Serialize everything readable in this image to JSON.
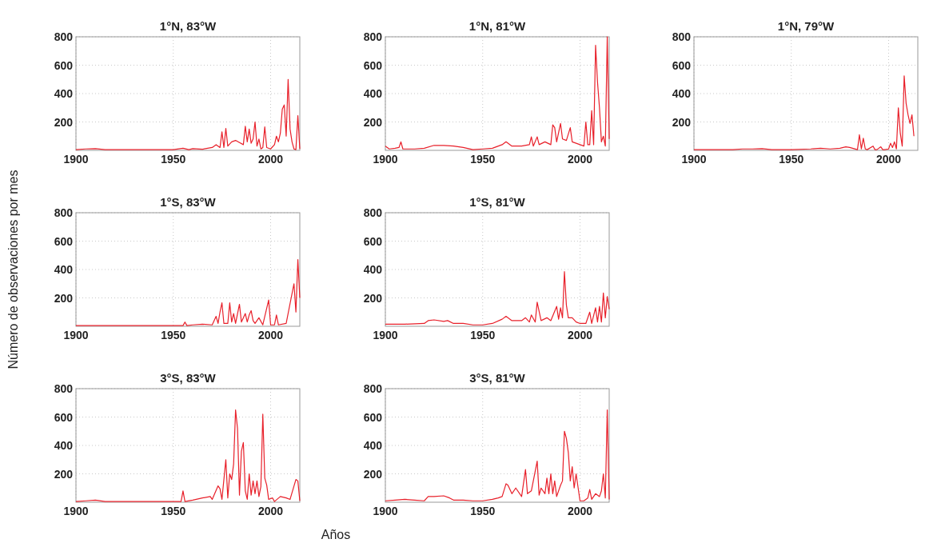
{
  "chart_data": [
    {
      "type": "line",
      "title": "1°N, 83°W",
      "xlim": [
        1900,
        2015
      ],
      "xticks": [
        1900,
        1950,
        2000
      ],
      "ylim": [
        0,
        800
      ],
      "yticks": [
        200,
        400,
        600,
        800
      ],
      "grid": true,
      "series": [
        {
          "color": "#e8202a",
          "x": [
            1900,
            1905,
            1910,
            1915,
            1920,
            1930,
            1940,
            1950,
            1955,
            1958,
            1960,
            1965,
            1970,
            1972,
            1974,
            1975,
            1976,
            1977,
            1978,
            1980,
            1982,
            1984,
            1986,
            1987,
            1988,
            1989,
            1990,
            1991,
            1992,
            1993,
            1994,
            1995,
            1996,
            1997,
            1998,
            2000,
            2002,
            2003,
            2004,
            2005,
            2006,
            2007,
            2008,
            2009,
            2010,
            2011,
            2012,
            2013,
            2014,
            2015
          ],
          "values": [
            5,
            10,
            12,
            5,
            5,
            5,
            5,
            5,
            15,
            5,
            12,
            8,
            20,
            40,
            20,
            130,
            20,
            155,
            30,
            60,
            70,
            55,
            40,
            170,
            60,
            150,
            50,
            80,
            200,
            30,
            80,
            10,
            20,
            165,
            20,
            10,
            40,
            100,
            60,
            120,
            290,
            320,
            100,
            500,
            150,
            60,
            10,
            5,
            245,
            10
          ]
        }
      ]
    },
    {
      "type": "line",
      "title": "1°N, 81°W",
      "xlim": [
        1900,
        2015
      ],
      "xticks": [
        1900,
        1950,
        2000
      ],
      "ylim": [
        0,
        800
      ],
      "yticks": [
        200,
        400,
        600,
        800
      ],
      "grid": true,
      "series": [
        {
          "color": "#e8202a",
          "x": [
            1900,
            1902,
            1905,
            1907,
            1908,
            1909,
            1915,
            1920,
            1925,
            1930,
            1935,
            1940,
            1945,
            1950,
            1955,
            1960,
            1962,
            1965,
            1970,
            1974,
            1975,
            1976,
            1978,
            1979,
            1982,
            1985,
            1986,
            1987,
            1988,
            1990,
            1991,
            1993,
            1995,
            1996,
            1998,
            2000,
            2002,
            2003,
            2004,
            2005,
            2006,
            2007,
            2008,
            2009,
            2010,
            2011,
            2012,
            2013,
            2014,
            2015
          ],
          "values": [
            30,
            10,
            15,
            20,
            60,
            10,
            10,
            15,
            35,
            35,
            30,
            20,
            5,
            10,
            15,
            40,
            60,
            30,
            30,
            40,
            95,
            30,
            95,
            40,
            60,
            40,
            180,
            160,
            60,
            190,
            80,
            70,
            160,
            60,
            50,
            40,
            30,
            200,
            40,
            40,
            280,
            40,
            740,
            480,
            300,
            60,
            100,
            30,
            800,
            80
          ]
        }
      ]
    },
    {
      "type": "line",
      "title": "1°N, 79°W",
      "xlim": [
        1900,
        2015
      ],
      "xticks": [
        1900,
        1950,
        2000
      ],
      "ylim": [
        0,
        800
      ],
      "yticks": [
        200,
        400,
        600,
        800
      ],
      "grid": true,
      "series": [
        {
          "color": "#e8202a",
          "x": [
            1900,
            1910,
            1920,
            1925,
            1930,
            1935,
            1940,
            1950,
            1960,
            1965,
            1970,
            1975,
            1978,
            1980,
            1984,
            1985,
            1986,
            1987,
            1988,
            1989,
            1992,
            1993,
            1994,
            1996,
            1997,
            1998,
            2000,
            2001,
            2002,
            2003,
            2004,
            2005,
            2006,
            2007,
            2008,
            2009,
            2010,
            2011,
            2012,
            2013
          ],
          "values": [
            5,
            5,
            5,
            10,
            10,
            12,
            5,
            5,
            10,
            15,
            10,
            15,
            25,
            20,
            5,
            110,
            10,
            85,
            10,
            5,
            30,
            5,
            5,
            25,
            5,
            5,
            10,
            50,
            20,
            60,
            10,
            300,
            120,
            30,
            525,
            330,
            250,
            190,
            250,
            100
          ]
        }
      ]
    },
    {
      "type": "line",
      "title": "1°S, 83°W",
      "ylabel": "Número de observaciones por mes",
      "xlim": [
        1900,
        2015
      ],
      "xticks": [
        1900,
        1950,
        2000
      ],
      "ylim": [
        0,
        800
      ],
      "yticks": [
        200,
        400,
        600,
        800
      ],
      "grid": true,
      "series": [
        {
          "color": "#e8202a",
          "x": [
            1900,
            1910,
            1920,
            1930,
            1940,
            1950,
            1955,
            1956,
            1957,
            1960,
            1965,
            1970,
            1972,
            1973,
            1974,
            1975,
            1976,
            1978,
            1979,
            1980,
            1981,
            1982,
            1984,
            1985,
            1987,
            1988,
            1989,
            1990,
            1991,
            1992,
            1994,
            1996,
            1999,
            2000,
            2002,
            2003,
            2004,
            2008,
            2012,
            2013,
            2014,
            2015
          ],
          "values": [
            5,
            5,
            5,
            5,
            5,
            5,
            5,
            30,
            5,
            10,
            15,
            10,
            70,
            20,
            100,
            165,
            20,
            20,
            165,
            30,
            90,
            20,
            155,
            30,
            90,
            30,
            80,
            110,
            40,
            20,
            60,
            10,
            185,
            10,
            10,
            80,
            10,
            20,
            300,
            100,
            470,
            200
          ]
        }
      ]
    },
    {
      "type": "line",
      "title": "1°S, 81°W",
      "xlim": [
        1900,
        2015
      ],
      "xticks": [
        1900,
        1950,
        2000
      ],
      "ylim": [
        0,
        800
      ],
      "yticks": [
        200,
        400,
        600,
        800
      ],
      "grid": true,
      "series": [
        {
          "color": "#e8202a",
          "x": [
            1900,
            1910,
            1920,
            1922,
            1925,
            1930,
            1932,
            1935,
            1940,
            1945,
            1950,
            1955,
            1960,
            1962,
            1965,
            1970,
            1972,
            1974,
            1975,
            1977,
            1978,
            1980,
            1983,
            1985,
            1988,
            1989,
            1990,
            1991,
            1992,
            1993,
            1994,
            1996,
            1998,
            2000,
            2003,
            2005,
            2006,
            2008,
            2009,
            2010,
            2011,
            2012,
            2013,
            2014,
            2015
          ],
          "values": [
            15,
            15,
            20,
            40,
            45,
            35,
            40,
            20,
            20,
            10,
            10,
            20,
            50,
            70,
            40,
            40,
            60,
            30,
            80,
            30,
            170,
            40,
            60,
            40,
            140,
            50,
            130,
            60,
            385,
            150,
            60,
            60,
            30,
            20,
            20,
            100,
            20,
            130,
            30,
            140,
            30,
            235,
            60,
            210,
            120
          ]
        }
      ]
    },
    {
      "type": "line",
      "title": "3°S, 83°W",
      "xlim": [
        1900,
        2015
      ],
      "xticks": [
        1900,
        1950,
        2000
      ],
      "ylim": [
        0,
        800
      ],
      "yticks": [
        200,
        400,
        600,
        800
      ],
      "grid": true,
      "series": [
        {
          "color": "#e8202a",
          "x": [
            1900,
            1905,
            1910,
            1915,
            1920,
            1930,
            1940,
            1950,
            1954,
            1955,
            1956,
            1960,
            1965,
            1969,
            1970,
            1973,
            1974,
            1975,
            1977,
            1978,
            1979,
            1980,
            1981,
            1982,
            1983,
            1984,
            1985,
            1986,
            1987,
            1988,
            1989,
            1990,
            1991,
            1992,
            1993,
            1994,
            1995,
            1996,
            1997,
            1998,
            1999,
            2001,
            2002,
            2005,
            2008,
            2010,
            2013,
            2014,
            2015
          ],
          "values": [
            5,
            10,
            15,
            5,
            5,
            5,
            5,
            5,
            5,
            80,
            5,
            15,
            30,
            40,
            20,
            115,
            95,
            20,
            300,
            30,
            200,
            160,
            270,
            650,
            520,
            50,
            360,
            420,
            80,
            20,
            200,
            50,
            150,
            60,
            150,
            40,
            110,
            620,
            170,
            120,
            20,
            30,
            5,
            40,
            30,
            20,
            160,
            150,
            10
          ]
        }
      ]
    },
    {
      "type": "line",
      "title": "3°S, 81°W",
      "xlabel": "Años",
      "xlim": [
        1900,
        2015
      ],
      "xticks": [
        1900,
        1950,
        2000
      ],
      "ylim": [
        0,
        800
      ],
      "yticks": [
        200,
        400,
        600,
        800
      ],
      "grid": true,
      "series": [
        {
          "color": "#e8202a",
          "x": [
            1900,
            1905,
            1910,
            1915,
            1920,
            1922,
            1925,
            1930,
            1933,
            1935,
            1940,
            1945,
            1950,
            1955,
            1958,
            1960,
            1962,
            1963,
            1965,
            1967,
            1970,
            1972,
            1973,
            1975,
            1978,
            1979,
            1980,
            1982,
            1983,
            1984,
            1985,
            1986,
            1987,
            1988,
            1990,
            1991,
            1992,
            1993,
            1994,
            1995,
            1996,
            1997,
            1998,
            2000,
            2002,
            2004,
            2005,
            2006,
            2008,
            2010,
            2011,
            2012,
            2013,
            2014,
            2015
          ],
          "values": [
            10,
            15,
            20,
            15,
            10,
            40,
            40,
            45,
            30,
            15,
            15,
            10,
            10,
            20,
            30,
            40,
            130,
            120,
            60,
            100,
            40,
            230,
            60,
            80,
            290,
            50,
            100,
            60,
            170,
            60,
            200,
            60,
            150,
            40,
            120,
            150,
            500,
            450,
            350,
            150,
            250,
            100,
            200,
            10,
            10,
            30,
            90,
            20,
            60,
            40,
            80,
            200,
            30,
            650,
            20
          ]
        }
      ]
    }
  ]
}
